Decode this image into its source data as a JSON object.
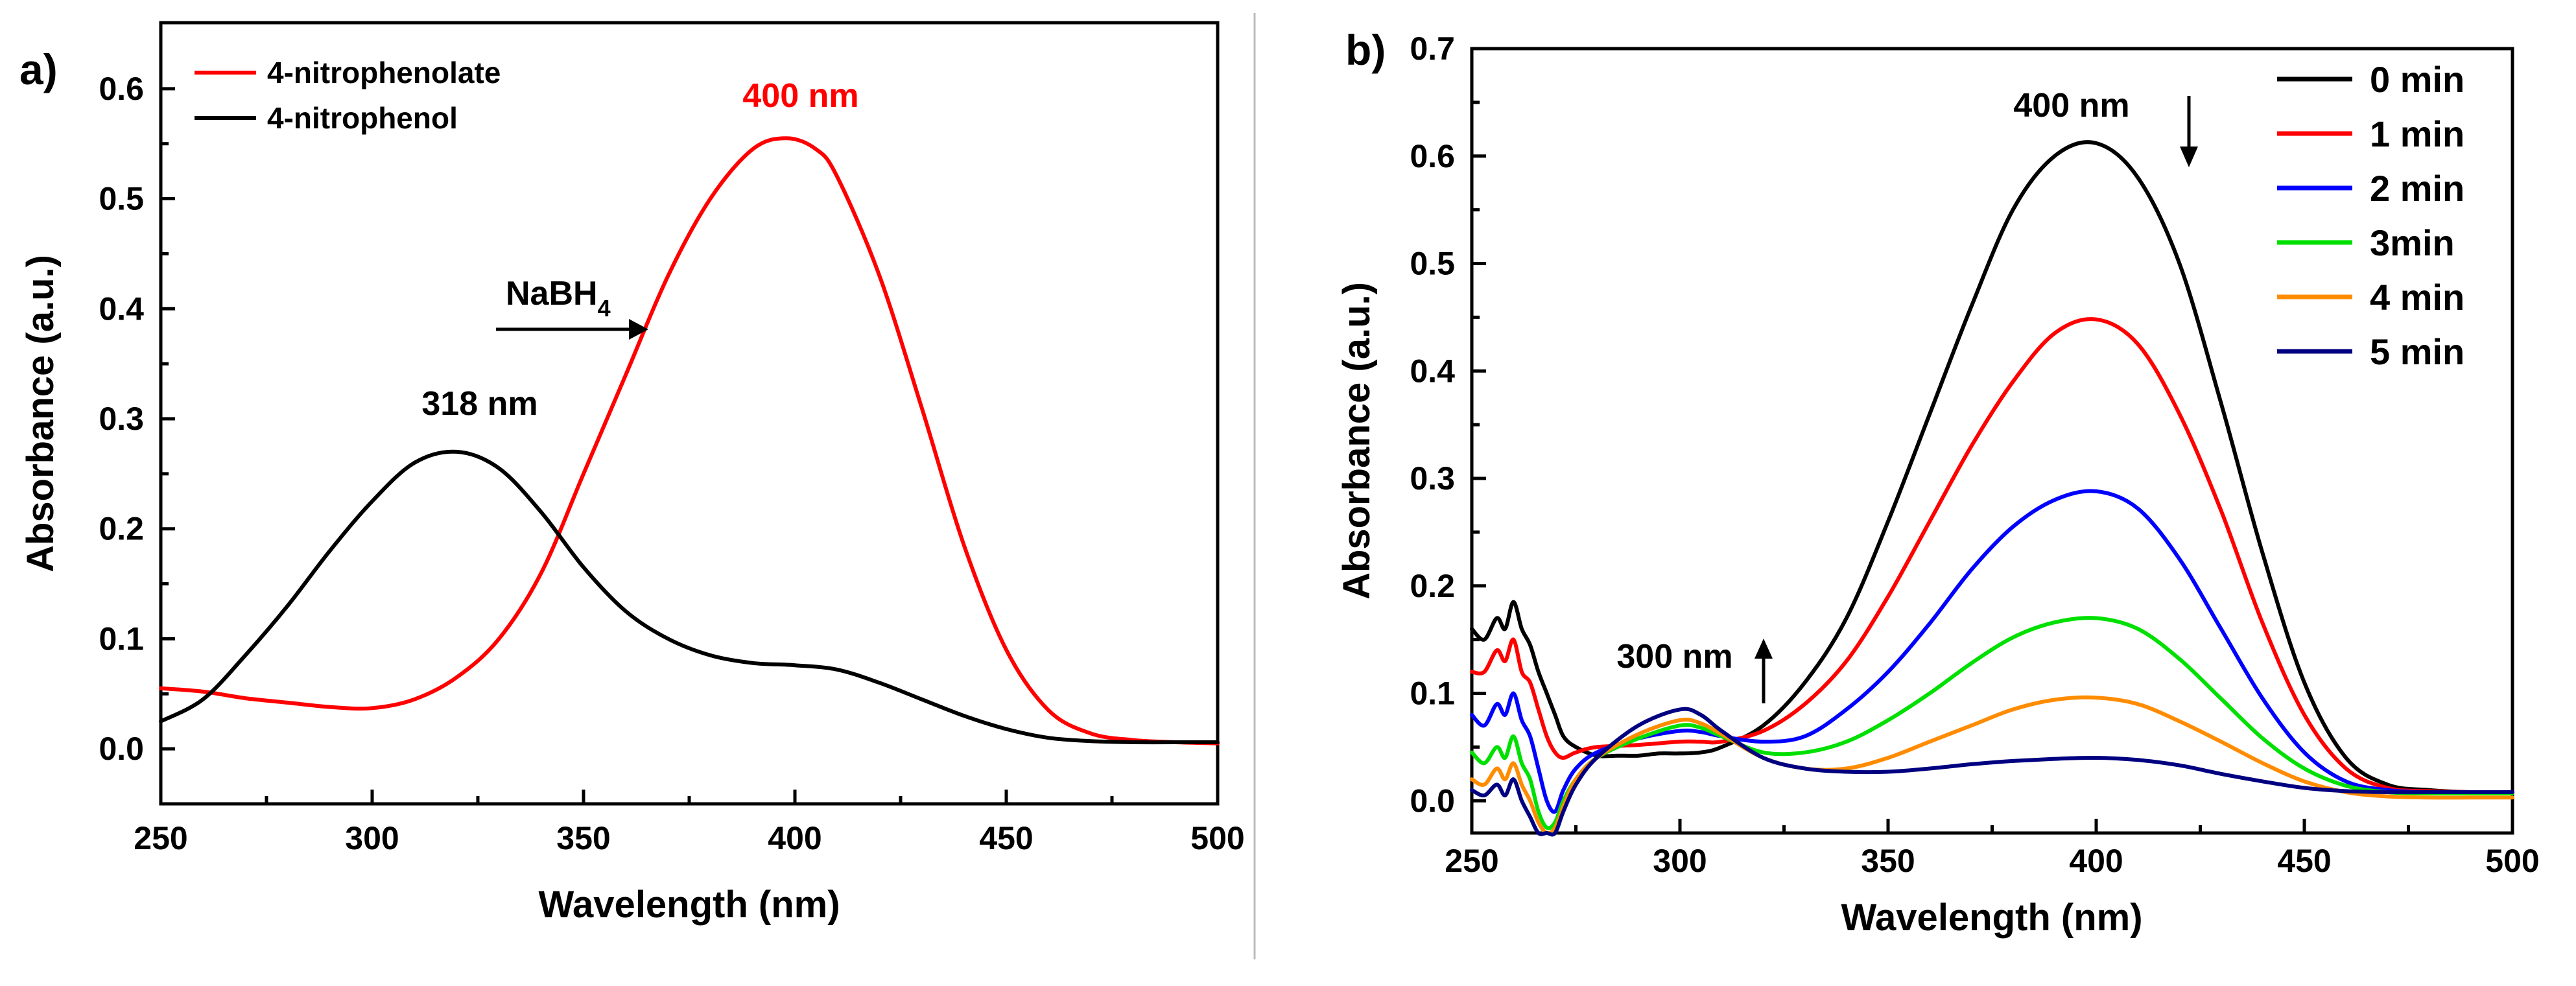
{
  "chart_data": [
    {
      "type": "line",
      "panel_label": "a)",
      "xlabel": "Wavelength (nm)",
      "ylabel": "Absorbance (a.u.)",
      "xlim": [
        250,
        500
      ],
      "ylim": [
        -0.05,
        0.66
      ],
      "xticks": [
        "250",
        "300",
        "350",
        "400",
        "450",
        "500"
      ],
      "yticks": [
        "0.0",
        "0.1",
        "0.2",
        "0.3",
        "0.4",
        "0.5",
        "0.6"
      ],
      "legend_position": "top-left",
      "series": [
        {
          "name": "4-nitrophenolate",
          "color": "#ff0000",
          "x": [
            250,
            260,
            270,
            280,
            290,
            300,
            310,
            320,
            330,
            340,
            350,
            360,
            370,
            380,
            390,
            398,
            405,
            410,
            420,
            430,
            440,
            450,
            460,
            470,
            480,
            490,
            500
          ],
          "y": [
            0.055,
            0.052,
            0.046,
            0.042,
            0.038,
            0.037,
            0.045,
            0.065,
            0.1,
            0.16,
            0.25,
            0.34,
            0.43,
            0.5,
            0.545,
            0.555,
            0.545,
            0.52,
            0.43,
            0.31,
            0.185,
            0.09,
            0.035,
            0.014,
            0.008,
            0.006,
            0.005
          ]
        },
        {
          "name": "4-nitrophenol",
          "color": "#000000",
          "x": [
            250,
            260,
            270,
            280,
            290,
            300,
            310,
            320,
            330,
            340,
            350,
            360,
            370,
            380,
            390,
            400,
            410,
            420,
            430,
            440,
            450,
            460,
            470,
            480,
            490,
            500
          ],
          "y": [
            0.025,
            0.045,
            0.085,
            0.13,
            0.18,
            0.225,
            0.26,
            0.27,
            0.255,
            0.215,
            0.165,
            0.125,
            0.1,
            0.085,
            0.078,
            0.076,
            0.072,
            0.06,
            0.045,
            0.03,
            0.018,
            0.01,
            0.007,
            0.006,
            0.006,
            0.006
          ]
        }
      ],
      "annotations": {
        "peak_red": "400 nm",
        "peak_black": "318 nm",
        "reagent": "NaBH",
        "reagent_sub": "4"
      }
    },
    {
      "type": "line",
      "panel_label": "b)",
      "xlabel": "Wavelength (nm)",
      "ylabel": "Absorbance (a.u.)",
      "xlim": [
        250,
        500
      ],
      "ylim": [
        -0.03,
        0.7
      ],
      "xticks": [
        "250",
        "300",
        "350",
        "400",
        "450",
        "500"
      ],
      "yticks": [
        "0.0",
        "0.1",
        "0.2",
        "0.3",
        "0.4",
        "0.5",
        "0.6",
        "0.7"
      ],
      "legend_position": "top-right",
      "series": [
        {
          "name": "0 min",
          "color": "#000000",
          "x": [
            250,
            253,
            256,
            258,
            260,
            262,
            264,
            266,
            268,
            270,
            272,
            275,
            280,
            285,
            290,
            295,
            300,
            305,
            310,
            320,
            330,
            340,
            350,
            360,
            370,
            380,
            390,
            400,
            410,
            420,
            430,
            440,
            450,
            460,
            470,
            480,
            490,
            500
          ],
          "y": [
            0.16,
            0.15,
            0.17,
            0.16,
            0.185,
            0.16,
            0.145,
            0.12,
            0.1,
            0.08,
            0.06,
            0.05,
            0.042,
            0.042,
            0.042,
            0.044,
            0.044,
            0.045,
            0.05,
            0.07,
            0.11,
            0.17,
            0.26,
            0.36,
            0.46,
            0.55,
            0.6,
            0.612,
            0.58,
            0.5,
            0.37,
            0.23,
            0.11,
            0.04,
            0.015,
            0.01,
            0.008,
            0.008
          ]
        },
        {
          "name": "1 min",
          "color": "#ff0000",
          "x": [
            250,
            253,
            256,
            258,
            260,
            262,
            264,
            266,
            268,
            270,
            272,
            275,
            280,
            290,
            300,
            305,
            310,
            320,
            330,
            340,
            350,
            360,
            370,
            380,
            390,
            400,
            410,
            420,
            430,
            440,
            450,
            460,
            470,
            480,
            490,
            500
          ],
          "y": [
            0.12,
            0.12,
            0.14,
            0.13,
            0.15,
            0.12,
            0.11,
            0.085,
            0.06,
            0.045,
            0.04,
            0.045,
            0.05,
            0.052,
            0.055,
            0.055,
            0.055,
            0.065,
            0.09,
            0.13,
            0.19,
            0.26,
            0.33,
            0.39,
            0.435,
            0.448,
            0.425,
            0.36,
            0.27,
            0.165,
            0.08,
            0.03,
            0.012,
            0.009,
            0.008,
            0.008
          ]
        },
        {
          "name": "2 min",
          "color": "#0000ff",
          "x": [
            250,
            253,
            256,
            258,
            260,
            262,
            264,
            266,
            268,
            270,
            272,
            275,
            280,
            290,
            300,
            305,
            310,
            320,
            330,
            340,
            350,
            360,
            370,
            380,
            390,
            400,
            410,
            420,
            430,
            440,
            450,
            460,
            470,
            480,
            490,
            500
          ],
          "y": [
            0.08,
            0.07,
            0.09,
            0.08,
            0.1,
            0.075,
            0.06,
            0.03,
            0.0,
            -0.01,
            0.01,
            0.03,
            0.045,
            0.058,
            0.065,
            0.064,
            0.06,
            0.055,
            0.06,
            0.085,
            0.12,
            0.165,
            0.215,
            0.255,
            0.28,
            0.288,
            0.272,
            0.225,
            0.16,
            0.095,
            0.045,
            0.018,
            0.01,
            0.008,
            0.008,
            0.008
          ]
        },
        {
          "name": "3min",
          "color": "#00e000",
          "x": [
            250,
            253,
            256,
            258,
            260,
            262,
            264,
            266,
            268,
            270,
            272,
            275,
            280,
            290,
            300,
            305,
            310,
            320,
            330,
            340,
            350,
            360,
            370,
            380,
            390,
            400,
            410,
            420,
            430,
            440,
            450,
            460,
            470,
            480,
            490,
            500
          ],
          "y": [
            0.045,
            0.035,
            0.05,
            0.04,
            0.06,
            0.035,
            0.02,
            -0.01,
            -0.025,
            -0.02,
            0.0,
            0.02,
            0.04,
            0.058,
            0.07,
            0.068,
            0.06,
            0.045,
            0.045,
            0.055,
            0.075,
            0.1,
            0.128,
            0.152,
            0.166,
            0.17,
            0.16,
            0.132,
            0.095,
            0.058,
            0.03,
            0.014,
            0.008,
            0.007,
            0.007,
            0.007
          ]
        },
        {
          "name": "4 min",
          "color": "#ff8c00",
          "x": [
            250,
            253,
            256,
            258,
            260,
            262,
            264,
            266,
            268,
            270,
            272,
            275,
            280,
            290,
            300,
            305,
            310,
            320,
            330,
            340,
            350,
            360,
            370,
            380,
            390,
            400,
            410,
            420,
            430,
            440,
            450,
            460,
            470,
            480,
            490,
            500
          ],
          "y": [
            0.02,
            0.015,
            0.03,
            0.02,
            0.035,
            0.015,
            0.0,
            -0.02,
            -0.03,
            -0.025,
            -0.005,
            0.02,
            0.04,
            0.062,
            0.075,
            0.072,
            0.062,
            0.04,
            0.03,
            0.03,
            0.04,
            0.055,
            0.07,
            0.085,
            0.094,
            0.096,
            0.09,
            0.074,
            0.055,
            0.035,
            0.018,
            0.008,
            0.004,
            0.003,
            0.003,
            0.003
          ]
        },
        {
          "name": "5 min",
          "color": "#000080",
          "x": [
            250,
            253,
            256,
            258,
            260,
            262,
            264,
            266,
            268,
            270,
            272,
            275,
            280,
            290,
            300,
            305,
            310,
            320,
            330,
            340,
            350,
            360,
            370,
            380,
            390,
            400,
            410,
            420,
            430,
            440,
            450,
            460,
            470,
            480,
            490,
            500
          ],
          "y": [
            0.01,
            0.005,
            0.015,
            0.005,
            0.02,
            0.0,
            -0.015,
            -0.03,
            -0.03,
            -0.03,
            -0.01,
            0.015,
            0.04,
            0.07,
            0.085,
            0.08,
            0.065,
            0.04,
            0.03,
            0.027,
            0.027,
            0.03,
            0.034,
            0.037,
            0.039,
            0.04,
            0.038,
            0.033,
            0.025,
            0.018,
            0.012,
            0.009,
            0.008,
            0.008,
            0.008,
            0.008
          ]
        }
      ],
      "annotations": {
        "peak_400": "400 nm",
        "peak_300": "300 nm"
      }
    }
  ]
}
